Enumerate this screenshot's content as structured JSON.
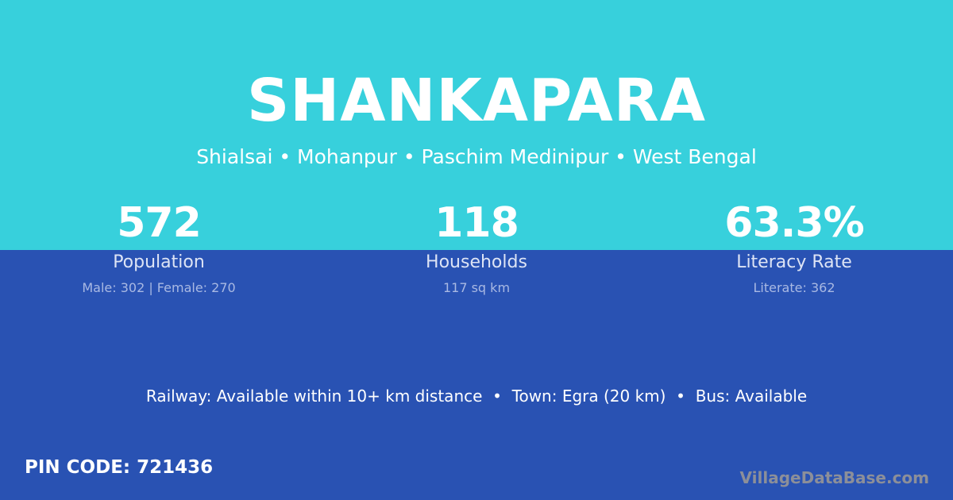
{
  "colors": {
    "top": "#37d0dc",
    "bottom": "#2952b3"
  },
  "title": "SHANKAPARA",
  "subtitle": "Shialsai • Mohanpur • Paschim Medinipur • West Bengal",
  "stats": [
    {
      "value": "572",
      "label": "Population",
      "detail": "Male: 302 | Female: 270"
    },
    {
      "value": "118",
      "label": "Households",
      "detail": "117 sq km"
    },
    {
      "value": "63.3%",
      "label": "Literacy Rate",
      "detail": "Literate: 362"
    }
  ],
  "info": "Railway: Available within 10+ km distance  •  Town: Egra (20 km)  •  Bus: Available",
  "pin": "PIN CODE: 721436",
  "brand": "VillageDataBase.com"
}
